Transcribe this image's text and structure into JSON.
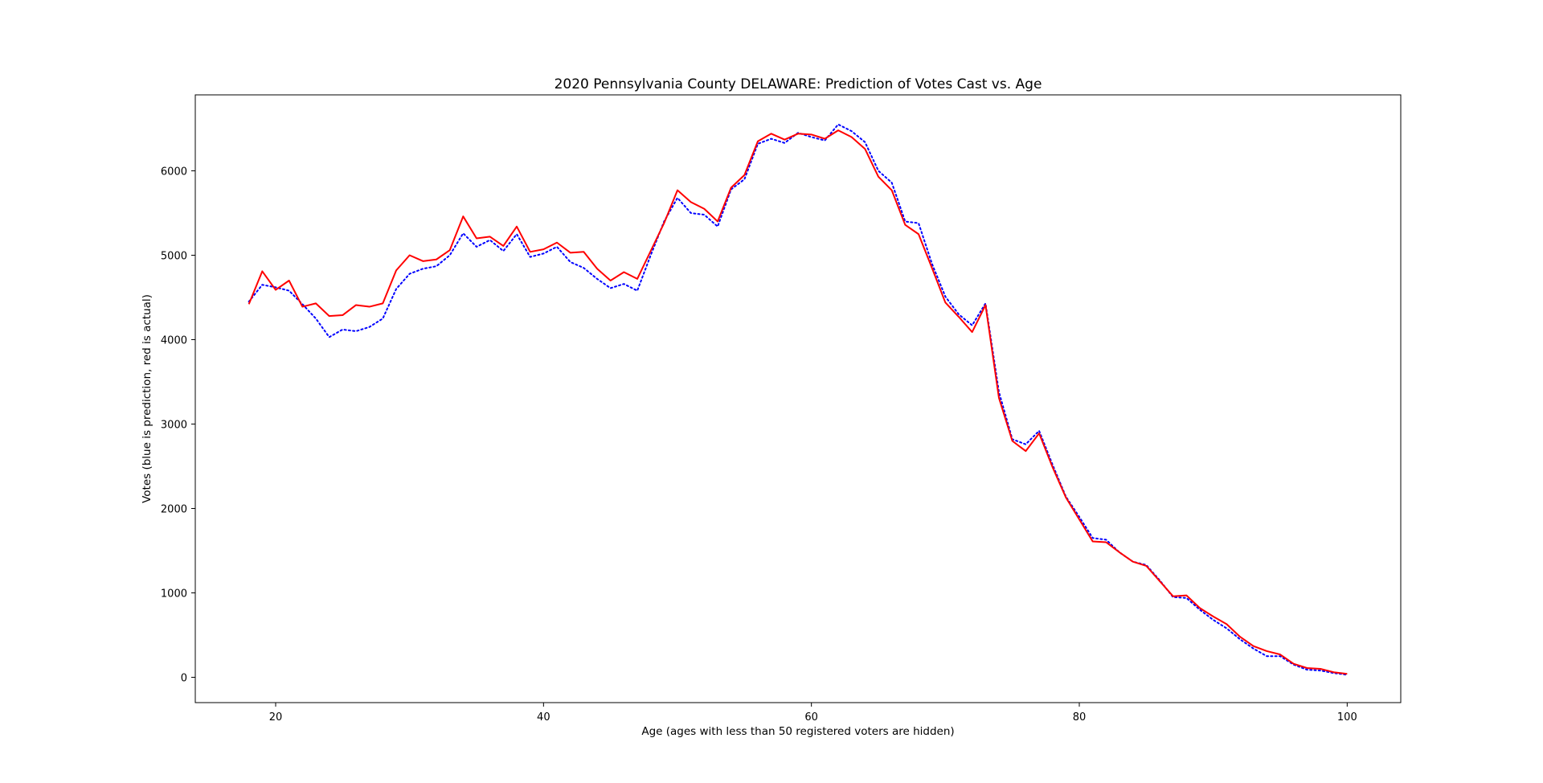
{
  "chart_data": {
    "type": "line",
    "title": "2020 Pennsylvania County DELAWARE: Prediction of Votes Cast vs. Age",
    "xlabel": "Age (ages with less than 50 registered voters are hidden)",
    "ylabel": "Votes (blue is prediction, red is actual)",
    "xlim": [
      14,
      104
    ],
    "ylim": [
      -300,
      6900
    ],
    "xticks": [
      20,
      40,
      60,
      80,
      100
    ],
    "yticks": [
      0,
      1000,
      2000,
      3000,
      4000,
      5000,
      6000
    ],
    "grid": false,
    "x": [
      18,
      19,
      20,
      21,
      22,
      23,
      24,
      25,
      26,
      27,
      28,
      29,
      30,
      31,
      32,
      33,
      34,
      35,
      36,
      37,
      38,
      39,
      40,
      41,
      42,
      43,
      44,
      45,
      46,
      47,
      48,
      49,
      50,
      51,
      52,
      53,
      54,
      55,
      56,
      57,
      58,
      59,
      60,
      61,
      62,
      63,
      64,
      65,
      66,
      67,
      68,
      69,
      70,
      71,
      72,
      73,
      74,
      75,
      76,
      77,
      78,
      79,
      80,
      81,
      82,
      83,
      84,
      85,
      86,
      87,
      88,
      89,
      90,
      91,
      92,
      93,
      94,
      95,
      96,
      97,
      98,
      99,
      100
    ],
    "series": [
      {
        "color": "#0000ff",
        "style": "dotted",
        "values": [
          4450,
          4650,
          4620,
          4580,
          4420,
          4250,
          4030,
          4120,
          4100,
          4150,
          4250,
          4600,
          4780,
          4840,
          4870,
          5000,
          5260,
          5100,
          5180,
          5050,
          5250,
          4980,
          5020,
          5100,
          4920,
          4850,
          4720,
          4610,
          4660,
          4580,
          5000,
          5400,
          5680,
          5500,
          5480,
          5340,
          5780,
          5900,
          6320,
          6380,
          6330,
          6450,
          6400,
          6360,
          6550,
          6470,
          6340,
          6000,
          5860,
          5400,
          5380,
          4900,
          4510,
          4300,
          4170,
          4430,
          3380,
          2820,
          2760,
          2920,
          2520,
          2140,
          1900,
          1650,
          1630,
          1480,
          1370,
          1330,
          1150,
          950,
          940,
          800,
          680,
          580,
          450,
          340,
          250,
          250,
          150,
          90,
          80,
          50,
          30
        ]
      },
      {
        "color": "#ff0000",
        "style": "solid",
        "values": [
          4420,
          4810,
          4590,
          4700,
          4390,
          4430,
          4280,
          4290,
          4410,
          4390,
          4430,
          4820,
          5000,
          4930,
          4950,
          5060,
          5460,
          5200,
          5220,
          5110,
          5340,
          5040,
          5070,
          5150,
          5030,
          5040,
          4840,
          4700,
          4800,
          4720,
          5050,
          5380,
          5770,
          5630,
          5550,
          5400,
          5800,
          5950,
          6350,
          6440,
          6370,
          6440,
          6430,
          6380,
          6480,
          6400,
          6260,
          5930,
          5770,
          5360,
          5250,
          4850,
          4440,
          4270,
          4090,
          4410,
          3310,
          2800,
          2680,
          2890,
          2490,
          2130,
          1870,
          1610,
          1600,
          1480,
          1370,
          1320,
          1140,
          960,
          970,
          820,
          720,
          630,
          480,
          370,
          310,
          270,
          160,
          110,
          100,
          60,
          40
        ]
      }
    ]
  }
}
